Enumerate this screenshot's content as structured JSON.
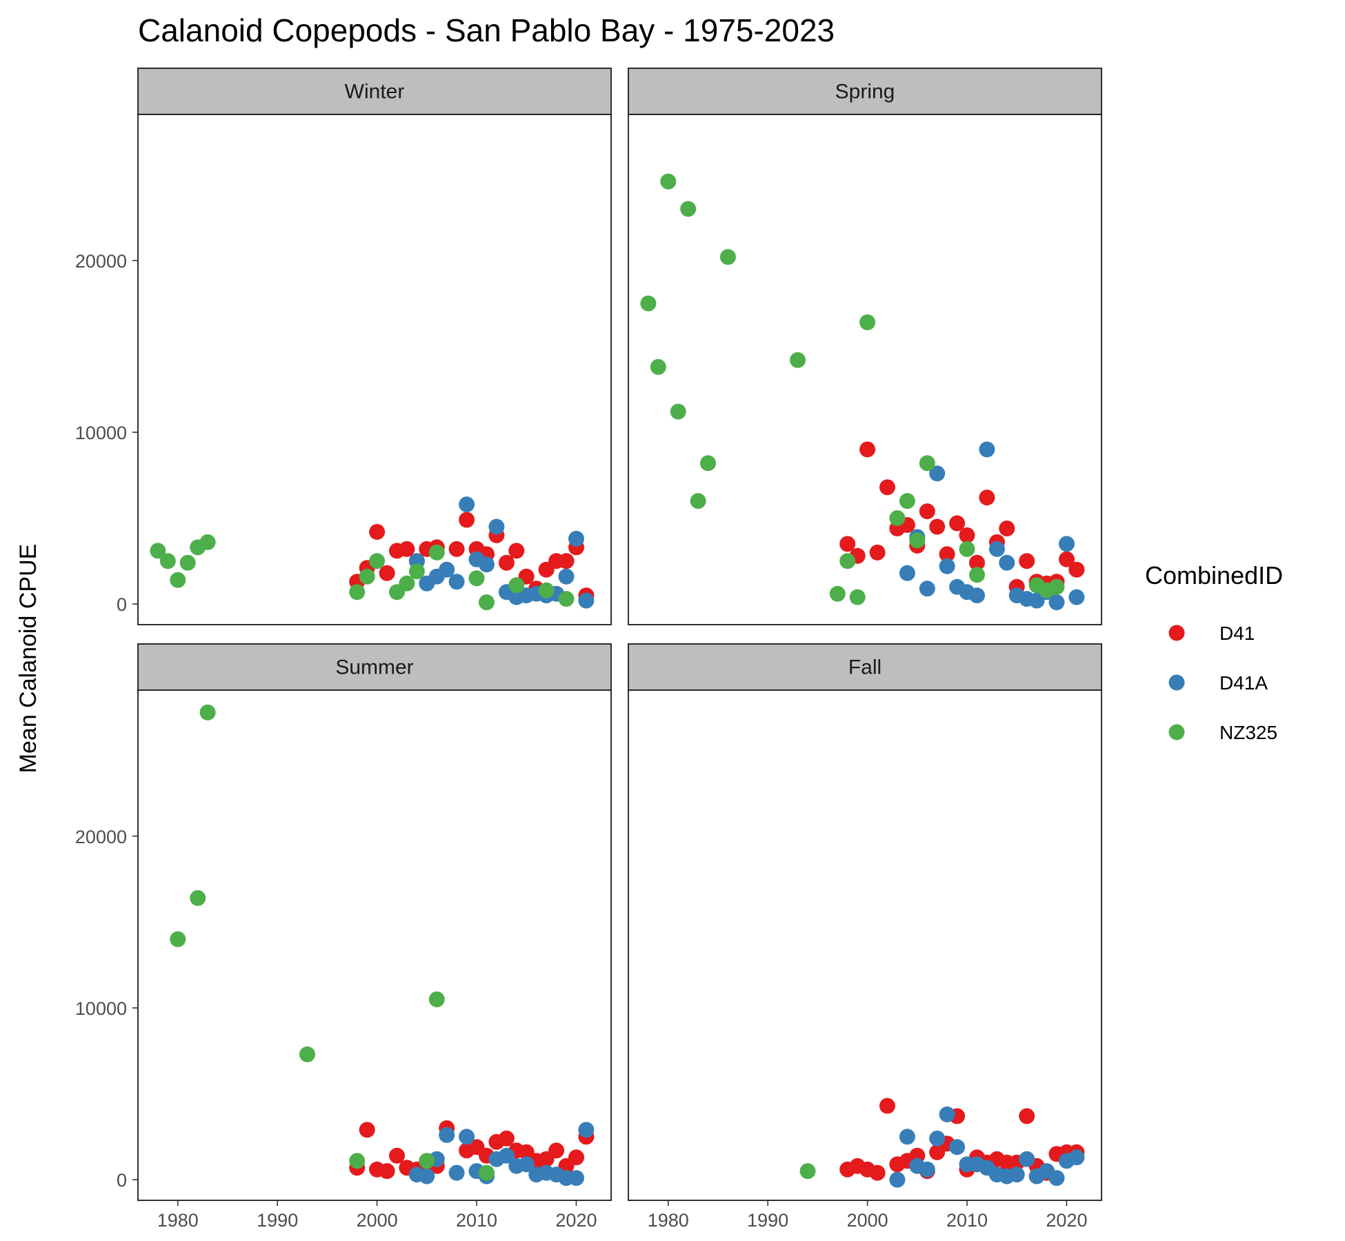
{
  "chart_data": {
    "type": "scatter",
    "title": "Calanoid Copepods - San Pablo Bay - 1975-2023",
    "xlabel": "",
    "ylabel": "Mean Calanoid CPUE",
    "xlim": [
      1976,
      2023.5
    ],
    "ylim": [
      -1200,
      28500
    ],
    "x_ticks": [
      1980,
      1990,
      2000,
      2010,
      2020
    ],
    "y_ticks": [
      0,
      10000,
      20000
    ],
    "grid": false,
    "legend": {
      "title": "CombinedID",
      "position": "right",
      "entries": [
        {
          "name": "D41",
          "color": "#e41a1c"
        },
        {
          "name": "D41A",
          "color": "#377eb8"
        },
        {
          "name": "NZ325",
          "color": "#4daf4a"
        }
      ]
    },
    "panels": [
      {
        "name": "Winter",
        "series": [
          {
            "name": "D41",
            "points": [
              [
                1998,
                1300
              ],
              [
                1999,
                2100
              ],
              [
                2000,
                4200
              ],
              [
                2001,
                1800
              ],
              [
                2002,
                3100
              ],
              [
                2003,
                3200
              ],
              [
                2004,
                2500
              ],
              [
                2005,
                3200
              ],
              [
                2006,
                3300
              ],
              [
                2008,
                3200
              ],
              [
                2009,
                4900
              ],
              [
                2010,
                3200
              ],
              [
                2011,
                2900
              ],
              [
                2012,
                4000
              ],
              [
                2013,
                2400
              ],
              [
                2014,
                3100
              ],
              [
                2015,
                1600
              ],
              [
                2016,
                900
              ],
              [
                2017,
                2000
              ],
              [
                2018,
                2500
              ],
              [
                2019,
                2500
              ],
              [
                2020,
                3300
              ],
              [
                2021,
                500
              ]
            ]
          },
          {
            "name": "D41A",
            "points": [
              [
                2004,
                2500
              ],
              [
                2005,
                1200
              ],
              [
                2006,
                1600
              ],
              [
                2007,
                2000
              ],
              [
                2008,
                1300
              ],
              [
                2009,
                5800
              ],
              [
                2010,
                2600
              ],
              [
                2011,
                2300
              ],
              [
                2012,
                4500
              ],
              [
                2013,
                700
              ],
              [
                2014,
                400
              ],
              [
                2015,
                500
              ],
              [
                2016,
                600
              ],
              [
                2017,
                500
              ],
              [
                2018,
                600
              ],
              [
                2019,
                1600
              ],
              [
                2020,
                3800
              ],
              [
                2021,
                200
              ]
            ]
          },
          {
            "name": "NZ325",
            "points": [
              [
                1978,
                3100
              ],
              [
                1979,
                2500
              ],
              [
                1980,
                1400
              ],
              [
                1981,
                2400
              ],
              [
                1982,
                3300
              ],
              [
                1983,
                3600
              ],
              [
                1998,
                700
              ],
              [
                1999,
                1600
              ],
              [
                2000,
                2500
              ],
              [
                2002,
                700
              ],
              [
                2003,
                1200
              ],
              [
                2004,
                1900
              ],
              [
                2006,
                3000
              ],
              [
                2010,
                1500
              ],
              [
                2011,
                100
              ],
              [
                2014,
                1100
              ],
              [
                2017,
                800
              ],
              [
                2019,
                300
              ]
            ]
          }
        ]
      },
      {
        "name": "Spring",
        "series": [
          {
            "name": "D41",
            "points": [
              [
                1998,
                3500
              ],
              [
                1999,
                2800
              ],
              [
                2000,
                9000
              ],
              [
                2001,
                3000
              ],
              [
                2002,
                6800
              ],
              [
                2003,
                4400
              ],
              [
                2004,
                4600
              ],
              [
                2005,
                3400
              ],
              [
                2006,
                5400
              ],
              [
                2007,
                4500
              ],
              [
                2008,
                2900
              ],
              [
                2009,
                4700
              ],
              [
                2010,
                4000
              ],
              [
                2011,
                2400
              ],
              [
                2012,
                6200
              ],
              [
                2013,
                3600
              ],
              [
                2014,
                4400
              ],
              [
                2015,
                1000
              ],
              [
                2016,
                2500
              ],
              [
                2017,
                1300
              ],
              [
                2018,
                1200
              ],
              [
                2019,
                1300
              ],
              [
                2020,
                2600
              ],
              [
                2021,
                2000
              ]
            ]
          },
          {
            "name": "D41A",
            "points": [
              [
                2004,
                1800
              ],
              [
                2005,
                3900
              ],
              [
                2006,
                900
              ],
              [
                2007,
                7600
              ],
              [
                2008,
                2200
              ],
              [
                2009,
                1000
              ],
              [
                2010,
                700
              ],
              [
                2011,
                500
              ],
              [
                2012,
                9000
              ],
              [
                2013,
                3200
              ],
              [
                2014,
                2400
              ],
              [
                2015,
                500
              ],
              [
                2016,
                300
              ],
              [
                2017,
                200
              ],
              [
                2018,
                700
              ],
              [
                2019,
                100
              ],
              [
                2020,
                3500
              ],
              [
                2021,
                400
              ]
            ]
          },
          {
            "name": "NZ325",
            "points": [
              [
                1978,
                17500
              ],
              [
                1979,
                13800
              ],
              [
                1980,
                24600
              ],
              [
                1981,
                11200
              ],
              [
                1982,
                23000
              ],
              [
                1983,
                6000
              ],
              [
                1984,
                8200
              ],
              [
                1986,
                20200
              ],
              [
                1993,
                14200
              ],
              [
                1997,
                600
              ],
              [
                1998,
                2500
              ],
              [
                1999,
                400
              ],
              [
                2000,
                16400
              ],
              [
                2003,
                5000
              ],
              [
                2004,
                6000
              ],
              [
                2005,
                3700
              ],
              [
                2006,
                8200
              ],
              [
                2010,
                3200
              ],
              [
                2011,
                1700
              ],
              [
                2017,
                1100
              ],
              [
                2018,
                800
              ],
              [
                2019,
                1000
              ]
            ]
          }
        ]
      },
      {
        "name": "Summer",
        "series": [
          {
            "name": "D41",
            "points": [
              [
                1998,
                700
              ],
              [
                1999,
                2900
              ],
              [
                2000,
                600
              ],
              [
                2001,
                500
              ],
              [
                2002,
                1400
              ],
              [
                2003,
                700
              ],
              [
                2004,
                600
              ],
              [
                2005,
                500
              ],
              [
                2006,
                800
              ],
              [
                2007,
                3000
              ],
              [
                2009,
                1700
              ],
              [
                2010,
                1900
              ],
              [
                2011,
                1400
              ],
              [
                2012,
                2200
              ],
              [
                2013,
                2400
              ],
              [
                2014,
                1700
              ],
              [
                2015,
                1600
              ],
              [
                2016,
                1100
              ],
              [
                2017,
                1200
              ],
              [
                2018,
                1700
              ],
              [
                2019,
                800
              ],
              [
                2020,
                1300
              ],
              [
                2021,
                2500
              ]
            ]
          },
          {
            "name": "D41A",
            "points": [
              [
                2004,
                300
              ],
              [
                2005,
                200
              ],
              [
                2006,
                1200
              ],
              [
                2007,
                2600
              ],
              [
                2008,
                400
              ],
              [
                2009,
                2500
              ],
              [
                2010,
                500
              ],
              [
                2011,
                200
              ],
              [
                2012,
                1200
              ],
              [
                2013,
                1400
              ],
              [
                2014,
                800
              ],
              [
                2015,
                900
              ],
              [
                2016,
                300
              ],
              [
                2017,
                400
              ],
              [
                2018,
                300
              ],
              [
                2019,
                100
              ],
              [
                2020,
                100
              ],
              [
                2021,
                2900
              ]
            ]
          },
          {
            "name": "NZ325",
            "points": [
              [
                1980,
                14000
              ],
              [
                1982,
                16400
              ],
              [
                1983,
                27200
              ],
              [
                1993,
                7300
              ],
              [
                1998,
                1100
              ],
              [
                2005,
                1100
              ],
              [
                2006,
                10500
              ],
              [
                2011,
                400
              ]
            ]
          }
        ]
      },
      {
        "name": "Fall",
        "series": [
          {
            "name": "D41",
            "points": [
              [
                1998,
                600
              ],
              [
                1999,
                800
              ],
              [
                2000,
                600
              ],
              [
                2001,
                400
              ],
              [
                2002,
                4300
              ],
              [
                2003,
                900
              ],
              [
                2004,
                1100
              ],
              [
                2005,
                1400
              ],
              [
                2006,
                500
              ],
              [
                2007,
                1600
              ],
              [
                2008,
                2100
              ],
              [
                2009,
                3700
              ],
              [
                2010,
                600
              ],
              [
                2011,
                1300
              ],
              [
                2012,
                1000
              ],
              [
                2013,
                1200
              ],
              [
                2014,
                1000
              ],
              [
                2015,
                1000
              ],
              [
                2016,
                3700
              ],
              [
                2017,
                800
              ],
              [
                2018,
                400
              ],
              [
                2019,
                1500
              ],
              [
                2020,
                1600
              ],
              [
                2021,
                1600
              ]
            ]
          },
          {
            "name": "D41A",
            "points": [
              [
                2003,
                0
              ],
              [
                2004,
                2500
              ],
              [
                2005,
                800
              ],
              [
                2006,
                600
              ],
              [
                2007,
                2400
              ],
              [
                2008,
                3800
              ],
              [
                2009,
                1900
              ],
              [
                2010,
                900
              ],
              [
                2011,
                900
              ],
              [
                2012,
                700
              ],
              [
                2013,
                300
              ],
              [
                2014,
                200
              ],
              [
                2015,
                300
              ],
              [
                2016,
                1200
              ],
              [
                2017,
                200
              ],
              [
                2018,
                500
              ],
              [
                2019,
                100
              ],
              [
                2020,
                1100
              ],
              [
                2021,
                1300
              ]
            ]
          },
          {
            "name": "NZ325",
            "points": [
              [
                1994,
                500
              ]
            ]
          }
        ]
      }
    ]
  }
}
